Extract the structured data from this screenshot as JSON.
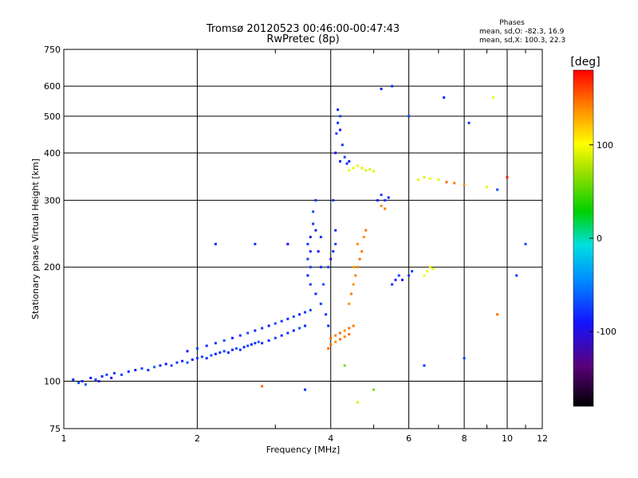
{
  "chart_data": {
    "type": "scatter",
    "title": "Tromsø 20120523 00:46:00-00:47:43",
    "subtitle": "RwPretec (8p)",
    "xlabel": "Frequency [MHz]",
    "ylabel": "Stationary phase Virtual Height [km]",
    "x_scale": "log",
    "y_scale": "log",
    "xlim": [
      1,
      12
    ],
    "ylim": [
      75,
      750
    ],
    "x_ticks": [
      1,
      2,
      4,
      6,
      8,
      10,
      12
    ],
    "y_ticks": [
      75,
      100,
      200,
      300,
      400,
      500,
      600,
      750
    ],
    "grid": true,
    "phase_info": {
      "heading": "Phases",
      "line_o": "mean, sd,O: -82.3, 16.9",
      "line_x": "mean, sd,X: 100.3, 22.3"
    },
    "colorbar": {
      "label": "[deg]",
      "ticks": [
        100,
        0,
        -100
      ],
      "range": [
        -180,
        180
      ]
    },
    "series": [
      {
        "points": [
          [
            1.05,
            101,
            -90
          ],
          [
            1.08,
            99,
            -80
          ],
          [
            1.1,
            100,
            -95
          ],
          [
            1.12,
            98,
            -75
          ],
          [
            1.15,
            102,
            -100
          ],
          [
            1.18,
            101,
            -85
          ],
          [
            1.2,
            100,
            -110
          ],
          [
            1.22,
            103,
            -95
          ],
          [
            1.25,
            104,
            -80
          ],
          [
            1.28,
            102,
            -105
          ],
          [
            1.3,
            105,
            -90
          ],
          [
            1.35,
            104,
            -85
          ],
          [
            1.4,
            106,
            -95
          ],
          [
            1.45,
            107,
            -100
          ],
          [
            1.5,
            108,
            -85
          ],
          [
            1.55,
            107,
            -90
          ],
          [
            1.6,
            109,
            -75
          ],
          [
            1.65,
            110,
            -95
          ],
          [
            1.7,
            111,
            -100
          ],
          [
            1.75,
            110,
            -85
          ],
          [
            1.8,
            112,
            -90
          ],
          [
            1.85,
            113,
            -95
          ],
          [
            1.9,
            112,
            -80
          ],
          [
            1.95,
            114,
            -100
          ],
          [
            2.0,
            115,
            -90
          ],
          [
            2.05,
            116,
            -85
          ],
          [
            2.1,
            115,
            -95
          ],
          [
            2.15,
            117,
            -80
          ],
          [
            2.2,
            118,
            -100
          ],
          [
            2.25,
            119,
            -90
          ],
          [
            2.3,
            120,
            -85
          ],
          [
            2.35,
            119,
            -95
          ],
          [
            2.4,
            121,
            -100
          ],
          [
            2.45,
            122,
            -80
          ],
          [
            2.5,
            121,
            -90
          ],
          [
            2.55,
            123,
            -95
          ],
          [
            2.6,
            124,
            -85
          ],
          [
            2.65,
            125,
            -100
          ],
          [
            2.7,
            126,
            -90
          ],
          [
            2.75,
            127,
            -80
          ],
          [
            2.8,
            126,
            -95
          ],
          [
            2.9,
            128,
            -90
          ],
          [
            3.0,
            130,
            -85
          ],
          [
            3.1,
            132,
            -95
          ],
          [
            3.2,
            134,
            -90
          ],
          [
            3.3,
            136,
            -100
          ],
          [
            3.4,
            138,
            -80
          ],
          [
            3.5,
            140,
            -95
          ],
          [
            1.9,
            120,
            -100
          ],
          [
            2.0,
            122,
            -85
          ],
          [
            2.1,
            124,
            -95
          ],
          [
            2.2,
            126,
            -90
          ],
          [
            2.3,
            128,
            -80
          ],
          [
            2.4,
            130,
            -100
          ],
          [
            2.5,
            132,
            -90
          ],
          [
            2.6,
            134,
            -85
          ],
          [
            2.7,
            136,
            -95
          ],
          [
            2.8,
            138,
            -90
          ],
          [
            2.9,
            140,
            -100
          ],
          [
            3.0,
            142,
            -85
          ],
          [
            3.1,
            144,
            -90
          ],
          [
            3.2,
            146,
            -95
          ],
          [
            3.3,
            148,
            -80
          ],
          [
            3.4,
            150,
            -100
          ],
          [
            3.5,
            152,
            -90
          ],
          [
            3.6,
            154,
            -85
          ],
          [
            3.6,
            180,
            -90
          ],
          [
            3.6,
            200,
            -85
          ],
          [
            3.6,
            220,
            -95
          ],
          [
            3.6,
            240,
            -100
          ],
          [
            3.65,
            260,
            -90
          ],
          [
            3.65,
            280,
            -80
          ],
          [
            3.55,
            190,
            -95
          ],
          [
            3.55,
            210,
            -85
          ],
          [
            3.55,
            230,
            -90
          ],
          [
            3.7,
            170,
            -95
          ],
          [
            3.7,
            250,
            -100
          ],
          [
            3.7,
            300,
            -90
          ],
          [
            3.8,
            160,
            -85
          ],
          [
            3.8,
            200,
            -95
          ],
          [
            3.8,
            240,
            -90
          ],
          [
            3.75,
            220,
            -100
          ],
          [
            3.85,
            180,
            -80
          ],
          [
            3.9,
            150,
            -90
          ],
          [
            3.95,
            140,
            -95
          ],
          [
            3.95,
            200,
            -85
          ],
          [
            4.0,
            210,
            -100
          ],
          [
            4.05,
            220,
            -90
          ],
          [
            4.1,
            230,
            -85
          ],
          [
            4.1,
            250,
            -95
          ],
          [
            4.05,
            300,
            -90
          ],
          [
            4.1,
            400,
            -100
          ],
          [
            4.12,
            450,
            -85
          ],
          [
            4.15,
            480,
            -90
          ],
          [
            4.15,
            520,
            -95
          ],
          [
            4.2,
            500,
            -80
          ],
          [
            4.2,
            460,
            -100
          ],
          [
            4.25,
            420,
            -90
          ],
          [
            4.3,
            390,
            -85
          ],
          [
            4.2,
            380,
            -95
          ],
          [
            4.35,
            375,
            -90
          ],
          [
            4.4,
            380,
            -100
          ],
          [
            4.0,
            130,
            150
          ],
          [
            4.1,
            132,
            145
          ],
          [
            4.2,
            134,
            150
          ],
          [
            4.3,
            136,
            140
          ],
          [
            4.4,
            138,
            150
          ],
          [
            4.5,
            140,
            145
          ],
          [
            4.0,
            125,
            150
          ],
          [
            4.1,
            127,
            140
          ],
          [
            4.2,
            129,
            150
          ],
          [
            4.3,
            131,
            145
          ],
          [
            4.4,
            133,
            150
          ],
          [
            3.95,
            122,
            150
          ],
          [
            4.4,
            160,
            140
          ],
          [
            4.45,
            170,
            145
          ],
          [
            4.5,
            180,
            140
          ],
          [
            4.55,
            190,
            145
          ],
          [
            4.6,
            200,
            140
          ],
          [
            4.65,
            210,
            150
          ],
          [
            4.7,
            220,
            145
          ],
          [
            4.75,
            240,
            140
          ],
          [
            4.8,
            250,
            150
          ],
          [
            4.5,
            200,
            135
          ],
          [
            4.6,
            230,
            140
          ],
          [
            4.4,
            360,
            90
          ],
          [
            4.5,
            365,
            85
          ],
          [
            4.6,
            370,
            90
          ],
          [
            4.7,
            365,
            80
          ],
          [
            4.8,
            360,
            85
          ],
          [
            4.9,
            362,
            80
          ],
          [
            5.0,
            358,
            85
          ],
          [
            5.1,
            300,
            -95
          ],
          [
            5.2,
            310,
            -85
          ],
          [
            5.3,
            300,
            -90
          ],
          [
            5.4,
            305,
            -100
          ],
          [
            5.2,
            290,
            140
          ],
          [
            5.3,
            285,
            145
          ],
          [
            5.5,
            180,
            -90
          ],
          [
            5.6,
            185,
            -95
          ],
          [
            5.7,
            190,
            -85
          ],
          [
            5.8,
            185,
            -100
          ],
          [
            6.0,
            190,
            -90
          ],
          [
            6.1,
            195,
            -85
          ],
          [
            6.5,
            190,
            95
          ],
          [
            6.6,
            195,
            90
          ],
          [
            6.7,
            200,
            85
          ],
          [
            6.8,
            198,
            90
          ],
          [
            6.3,
            340,
            85
          ],
          [
            6.5,
            345,
            80
          ],
          [
            6.7,
            342,
            90
          ],
          [
            7.0,
            340,
            85
          ],
          [
            7.3,
            335,
            150
          ],
          [
            7.6,
            333,
            145
          ],
          [
            8.0,
            330,
            140
          ],
          [
            9.0,
            325,
            90
          ],
          [
            9.5,
            320,
            -80
          ],
          [
            10.0,
            345,
            170
          ],
          [
            5.2,
            590,
            -100
          ],
          [
            5.5,
            600,
            -90
          ],
          [
            6.0,
            500,
            -85
          ],
          [
            7.2,
            560,
            -95
          ],
          [
            8.2,
            480,
            -90
          ],
          [
            9.3,
            560,
            90
          ],
          [
            10.5,
            190,
            -90
          ],
          [
            11.0,
            230,
            -85
          ],
          [
            3.2,
            230,
            -100
          ],
          [
            2.7,
            230,
            -90
          ],
          [
            2.2,
            230,
            -95
          ],
          [
            5.0,
            95,
            40
          ],
          [
            4.3,
            110,
            40
          ],
          [
            8.0,
            115,
            -85
          ],
          [
            9.5,
            150,
            150
          ],
          [
            6.5,
            110,
            -90
          ],
          [
            2.8,
            97,
            150
          ],
          [
            3.5,
            95,
            -90
          ],
          [
            4.6,
            88,
            80
          ]
        ]
      }
    ]
  }
}
